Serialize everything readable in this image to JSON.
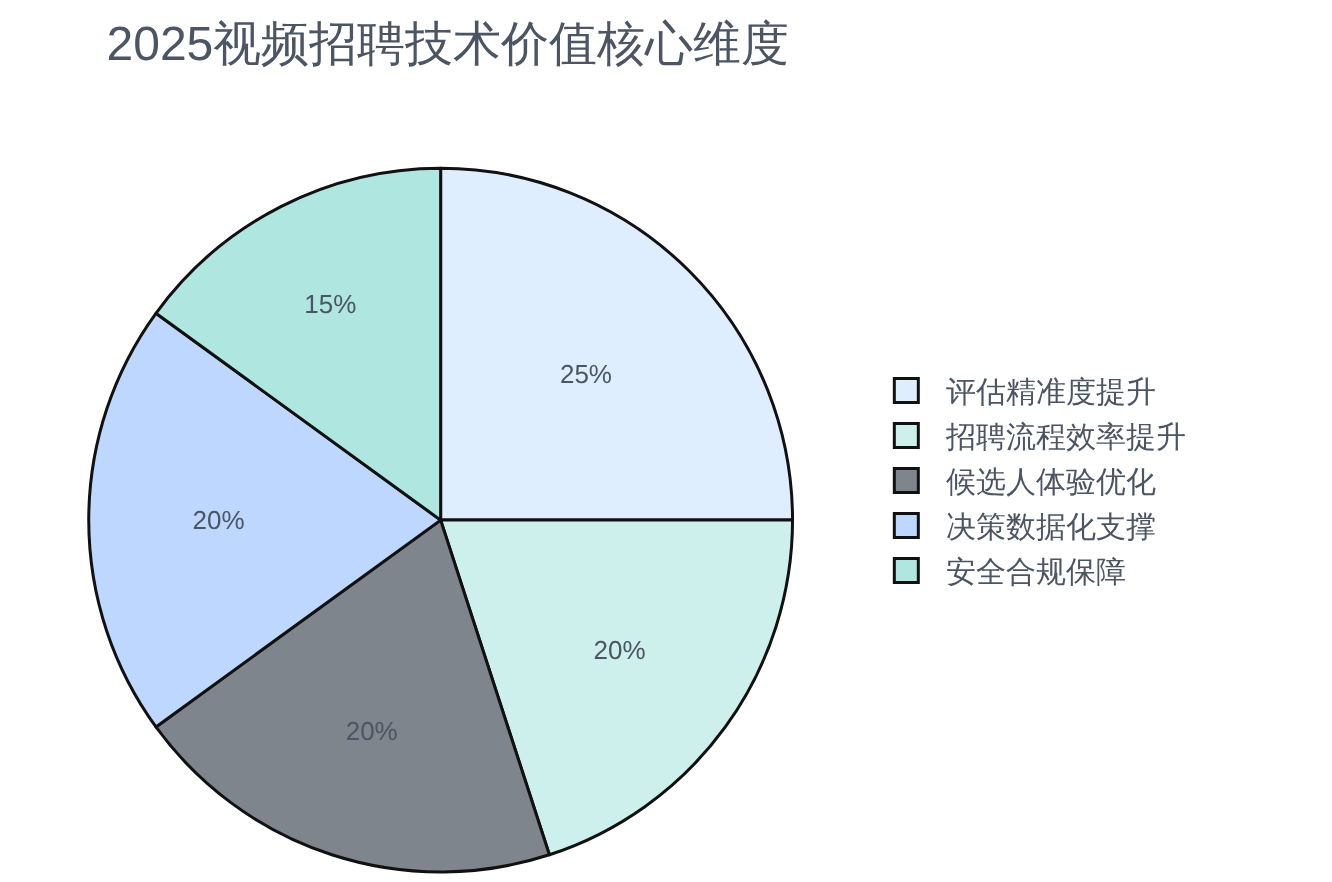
{
  "chart_data": {
    "type": "pie",
    "title": "2025视频招聘技术价值核心维度",
    "categories": [
      "评估精准度提升",
      "招聘流程效率提升",
      "候选人体验优化",
      "决策数据化支撑",
      "安全合规保障"
    ],
    "values": [
      25,
      20,
      20,
      20,
      15
    ],
    "value_labels": [
      "25%",
      "20%",
      "20%",
      "20%",
      "15%"
    ],
    "colors": [
      "#dfeeff",
      "#cdf0ec",
      "#7f858c",
      "#bdd7ff",
      "#b0e6e0"
    ],
    "legend": "right"
  }
}
